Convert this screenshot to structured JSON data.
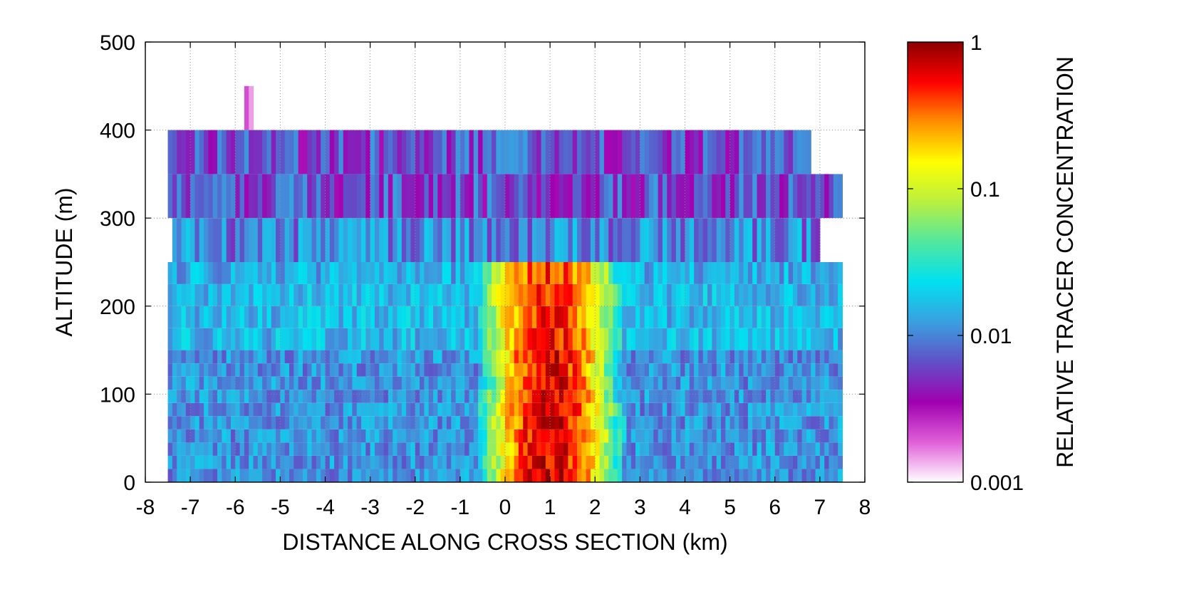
{
  "chart_data": {
    "type": "heatmap",
    "xlabel": "DISTANCE ALONG CROSS SECTION (km)",
    "ylabel": "ALTITUDE (m)",
    "xlim": [
      -8,
      8
    ],
    "ylim": [
      0,
      500
    ],
    "x_ticks": [
      "-8",
      "-7",
      "-6",
      "-5",
      "-4",
      "-3",
      "-2",
      "-1",
      "0",
      "1",
      "2",
      "3",
      "4",
      "5",
      "6",
      "7",
      "8"
    ],
    "y_ticks": [
      "0",
      "100",
      "200",
      "300",
      "400",
      "500"
    ],
    "grid": true,
    "colorbar": {
      "label": "RELATIVE TRACER CONCENTRATION",
      "scale": "log",
      "range": [
        0.001,
        1
      ],
      "ticks": [
        "1",
        "0.1",
        "0.01",
        "0.001"
      ],
      "colors": [
        "#ffffff",
        "#e060d8",
        "#a000b0",
        "#6050c8",
        "#3aa0e0",
        "#00e0f0",
        "#50e8a0",
        "#b8f040",
        "#ffff00",
        "#ff9000",
        "#ff0000",
        "#8b0000"
      ]
    },
    "x_step_km": 0.1,
    "x_unit": "km",
    "y_unit": "m",
    "plume_center_km": 1.0,
    "layers": [
      {
        "z_bottom": 0,
        "z_top": 15,
        "x_start": -7.5,
        "x_end": 7.5,
        "log10_core": -0.15,
        "half_width_km": 1.2,
        "log10_background": -1.95
      },
      {
        "z_bottom": 15,
        "z_top": 30,
        "x_start": -7.5,
        "x_end": 7.5,
        "log10_core": -0.2,
        "half_width_km": 1.2,
        "log10_background": -1.95
      },
      {
        "z_bottom": 30,
        "z_top": 45,
        "x_start": -7.5,
        "x_end": 7.5,
        "log10_core": -0.2,
        "half_width_km": 1.25,
        "log10_background": -1.95
      },
      {
        "z_bottom": 45,
        "z_top": 60,
        "x_start": -7.5,
        "x_end": 7.5,
        "log10_core": -0.2,
        "half_width_km": 1.25,
        "log10_background": -1.95
      },
      {
        "z_bottom": 60,
        "z_top": 75,
        "x_start": -7.5,
        "x_end": 7.5,
        "log10_core": -0.2,
        "half_width_km": 1.25,
        "log10_background": -1.95
      },
      {
        "z_bottom": 75,
        "z_top": 90,
        "x_start": -7.5,
        "x_end": 7.5,
        "log10_core": -0.2,
        "half_width_km": 1.25,
        "log10_background": -1.95
      },
      {
        "z_bottom": 90,
        "z_top": 105,
        "x_start": -7.5,
        "x_end": 7.5,
        "log10_core": -0.2,
        "half_width_km": 1.2,
        "log10_background": -1.95
      },
      {
        "z_bottom": 105,
        "z_top": 120,
        "x_start": -7.5,
        "x_end": 7.5,
        "log10_core": -0.2,
        "half_width_km": 1.15,
        "log10_background": -1.95
      },
      {
        "z_bottom": 120,
        "z_top": 135,
        "x_start": -7.5,
        "x_end": 7.5,
        "log10_core": -0.2,
        "half_width_km": 1.15,
        "log10_background": -1.95
      },
      {
        "z_bottom": 135,
        "z_top": 150,
        "x_start": -7.5,
        "x_end": 7.5,
        "log10_core": -0.2,
        "half_width_km": 1.2,
        "log10_background": -1.95
      },
      {
        "z_bottom": 150,
        "z_top": 175,
        "x_start": -7.5,
        "x_end": 7.5,
        "log10_core": -0.3,
        "half_width_km": 1.3,
        "log10_background": -1.8
      },
      {
        "z_bottom": 175,
        "z_top": 200,
        "x_start": -7.5,
        "x_end": 7.5,
        "log10_core": -0.3,
        "half_width_km": 1.3,
        "log10_background": -1.8
      },
      {
        "z_bottom": 200,
        "z_top": 225,
        "x_start": -7.5,
        "x_end": 7.5,
        "log10_core": -0.3,
        "half_width_km": 1.3,
        "log10_background": -1.8
      },
      {
        "z_bottom": 225,
        "z_top": 250,
        "x_start": -7.5,
        "x_end": 7.5,
        "log10_core": -0.35,
        "half_width_km": 1.3,
        "log10_background": -1.85
      },
      {
        "z_bottom": 250,
        "z_top": 300,
        "x_start": -7.4,
        "x_end": 7.0,
        "log10_core": -2.0,
        "half_width_km": 0,
        "log10_background": -2.0
      },
      {
        "z_bottom": 300,
        "z_top": 350,
        "x_start": -7.5,
        "x_end": 7.5,
        "log10_core": -2.2,
        "half_width_km": 0,
        "log10_background": -2.2
      },
      {
        "z_bottom": 350,
        "z_top": 400,
        "x_start": -7.5,
        "x_end": 6.8,
        "log10_core": -2.2,
        "half_width_km": 0,
        "log10_background": -2.2
      },
      {
        "z_bottom": 400,
        "z_top": 450,
        "x_start": -5.8,
        "x_end": -5.6,
        "log10_core": -2.75,
        "half_width_km": 0,
        "log10_background": -2.75
      }
    ]
  }
}
